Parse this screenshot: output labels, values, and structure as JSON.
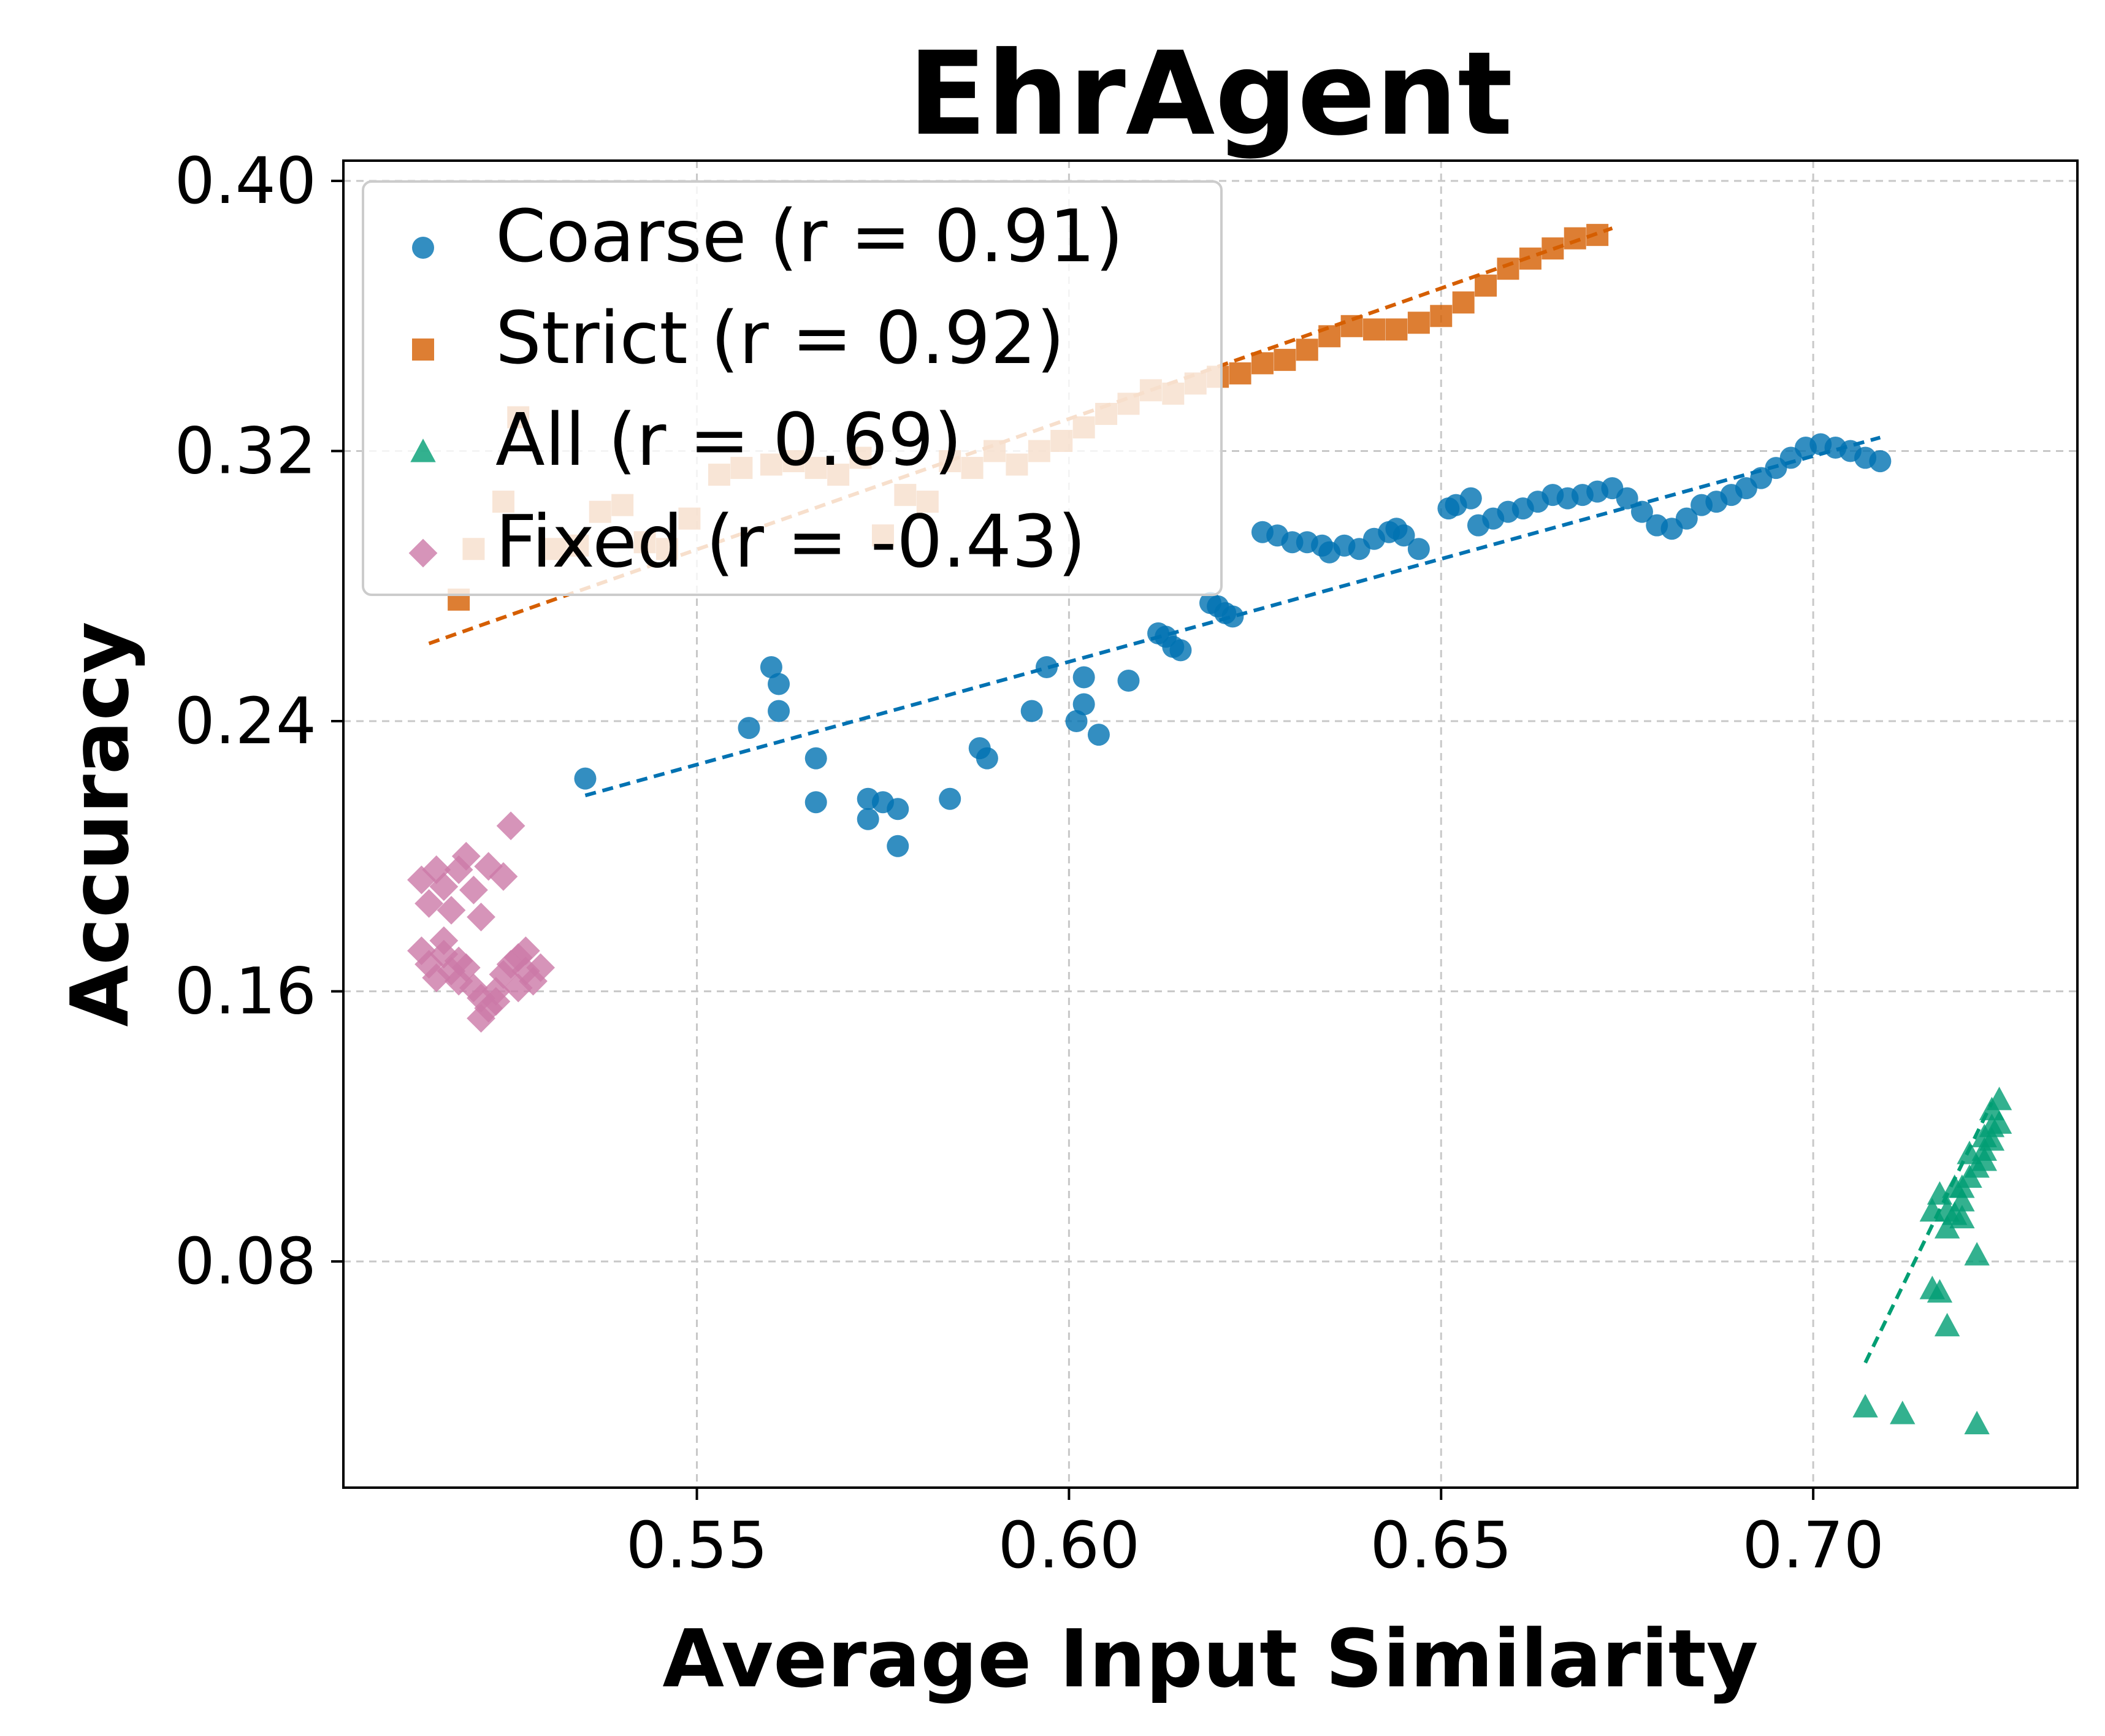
{
  "chart_data": {
    "type": "scatter",
    "title": "EhrAgent",
    "xlabel": "Average Input Similarity",
    "ylabel": "Accuracy",
    "xlim": [
      0.5025,
      0.7355
    ],
    "ylim": [
      0.013,
      0.406
    ],
    "xticks": [
      0.55,
      0.6,
      0.65,
      0.7
    ],
    "xtick_labels": [
      "0.55",
      "0.60",
      "0.65",
      "0.70"
    ],
    "yticks": [
      0.08,
      0.16,
      0.24,
      0.32,
      0.4
    ],
    "ytick_labels": [
      "0.08",
      "0.16",
      "0.24",
      "0.32",
      "0.40"
    ],
    "grid": true,
    "legend_position": "top-left",
    "series": [
      {
        "name": "Coarse (r = 0.91)",
        "color": "#0072b2",
        "marker": "circle",
        "trend": [
          [
            0.535,
            0.218
          ],
          [
            0.709,
            0.324
          ]
        ],
        "points": [
          [
            0.535,
            0.223
          ],
          [
            0.557,
            0.238
          ],
          [
            0.56,
            0.256
          ],
          [
            0.561,
            0.251
          ],
          [
            0.561,
            0.243
          ],
          [
            0.566,
            0.229
          ],
          [
            0.566,
            0.216
          ],
          [
            0.573,
            0.217
          ],
          [
            0.573,
            0.211
          ],
          [
            0.575,
            0.216
          ],
          [
            0.577,
            0.214
          ],
          [
            0.577,
            0.203
          ],
          [
            0.584,
            0.217
          ],
          [
            0.588,
            0.232
          ],
          [
            0.589,
            0.229
          ],
          [
            0.595,
            0.243
          ],
          [
            0.597,
            0.256
          ],
          [
            0.601,
            0.24
          ],
          [
            0.602,
            0.245
          ],
          [
            0.602,
            0.253
          ],
          [
            0.604,
            0.236
          ],
          [
            0.608,
            0.252
          ],
          [
            0.612,
            0.266
          ],
          [
            0.613,
            0.265
          ],
          [
            0.614,
            0.262
          ],
          [
            0.615,
            0.261
          ],
          [
            0.619,
            0.275
          ],
          [
            0.62,
            0.274
          ],
          [
            0.621,
            0.272
          ],
          [
            0.622,
            0.271
          ],
          [
            0.626,
            0.296
          ],
          [
            0.628,
            0.295
          ],
          [
            0.63,
            0.293
          ],
          [
            0.632,
            0.293
          ],
          [
            0.634,
            0.292
          ],
          [
            0.635,
            0.29
          ],
          [
            0.637,
            0.292
          ],
          [
            0.639,
            0.291
          ],
          [
            0.641,
            0.294
          ],
          [
            0.643,
            0.296
          ],
          [
            0.644,
            0.297
          ],
          [
            0.645,
            0.295
          ],
          [
            0.647,
            0.291
          ],
          [
            0.651,
            0.303
          ],
          [
            0.652,
            0.304
          ],
          [
            0.654,
            0.306
          ],
          [
            0.655,
            0.298
          ],
          [
            0.657,
            0.3
          ],
          [
            0.659,
            0.302
          ],
          [
            0.661,
            0.303
          ],
          [
            0.663,
            0.305
          ],
          [
            0.665,
            0.307
          ],
          [
            0.667,
            0.306
          ],
          [
            0.669,
            0.307
          ],
          [
            0.671,
            0.308
          ],
          [
            0.673,
            0.309
          ],
          [
            0.675,
            0.306
          ],
          [
            0.677,
            0.302
          ],
          [
            0.679,
            0.298
          ],
          [
            0.681,
            0.297
          ],
          [
            0.683,
            0.3
          ],
          [
            0.685,
            0.304
          ],
          [
            0.687,
            0.305
          ],
          [
            0.689,
            0.307
          ],
          [
            0.691,
            0.309
          ],
          [
            0.693,
            0.312
          ],
          [
            0.695,
            0.315
          ],
          [
            0.697,
            0.318
          ],
          [
            0.699,
            0.321
          ],
          [
            0.701,
            0.322
          ],
          [
            0.703,
            0.321
          ],
          [
            0.705,
            0.32
          ],
          [
            0.707,
            0.318
          ],
          [
            0.709,
            0.317
          ]
        ]
      },
      {
        "name": "Strict (r = 0.92)",
        "color": "#d55e00",
        "marker": "square",
        "trend": [
          [
            0.514,
            0.263
          ],
          [
            0.673,
            0.386
          ]
        ],
        "points": [
          [
            0.518,
            0.276
          ],
          [
            0.52,
            0.291
          ],
          [
            0.524,
            0.305
          ],
          [
            0.526,
            0.33
          ],
          [
            0.531,
            0.291
          ],
          [
            0.534,
            0.292
          ],
          [
            0.537,
            0.302
          ],
          [
            0.54,
            0.304
          ],
          [
            0.543,
            0.293
          ],
          [
            0.546,
            0.291
          ],
          [
            0.549,
            0.3
          ],
          [
            0.553,
            0.313
          ],
          [
            0.556,
            0.315
          ],
          [
            0.56,
            0.316
          ],
          [
            0.563,
            0.317
          ],
          [
            0.566,
            0.315
          ],
          [
            0.569,
            0.313
          ],
          [
            0.572,
            0.318
          ],
          [
            0.575,
            0.295
          ],
          [
            0.578,
            0.307
          ],
          [
            0.581,
            0.305
          ],
          [
            0.584,
            0.317
          ],
          [
            0.587,
            0.315
          ],
          [
            0.59,
            0.32
          ],
          [
            0.593,
            0.316
          ],
          [
            0.596,
            0.32
          ],
          [
            0.599,
            0.323
          ],
          [
            0.602,
            0.327
          ],
          [
            0.605,
            0.331
          ],
          [
            0.608,
            0.334
          ],
          [
            0.611,
            0.338
          ],
          [
            0.614,
            0.337
          ],
          [
            0.617,
            0.34
          ],
          [
            0.62,
            0.342
          ],
          [
            0.623,
            0.343
          ],
          [
            0.626,
            0.346
          ],
          [
            0.629,
            0.347
          ],
          [
            0.632,
            0.35
          ],
          [
            0.635,
            0.354
          ],
          [
            0.638,
            0.357
          ],
          [
            0.641,
            0.356
          ],
          [
            0.644,
            0.356
          ],
          [
            0.647,
            0.358
          ],
          [
            0.65,
            0.36
          ],
          [
            0.653,
            0.364
          ],
          [
            0.656,
            0.369
          ],
          [
            0.659,
            0.374
          ],
          [
            0.662,
            0.377
          ],
          [
            0.665,
            0.38
          ],
          [
            0.668,
            0.383
          ],
          [
            0.671,
            0.384
          ]
        ]
      },
      {
        "name": "All (r = 0.69)",
        "color": "#009e73",
        "marker": "triangle",
        "trend": [
          [
            0.707,
            0.05
          ],
          [
            0.724,
            0.127
          ]
        ],
        "points": [
          [
            0.707,
            0.037
          ],
          [
            0.712,
            0.035
          ],
          [
            0.716,
            0.095
          ],
          [
            0.716,
            0.072
          ],
          [
            0.717,
            0.1
          ],
          [
            0.717,
            0.071
          ],
          [
            0.718,
            0.095
          ],
          [
            0.718,
            0.061
          ],
          [
            0.719,
            0.102
          ],
          [
            0.719,
            0.094
          ],
          [
            0.72,
            0.102
          ],
          [
            0.72,
            0.093
          ],
          [
            0.721,
            0.112
          ],
          [
            0.722,
            0.108
          ],
          [
            0.722,
            0.082
          ],
          [
            0.722,
            0.032
          ],
          [
            0.723,
            0.117
          ],
          [
            0.723,
            0.113
          ],
          [
            0.724,
            0.125
          ],
          [
            0.724,
            0.12
          ],
          [
            0.725,
            0.128
          ],
          [
            0.725,
            0.121
          ],
          [
            0.724,
            0.116
          ],
          [
            0.723,
            0.11
          ],
          [
            0.721,
            0.105
          ],
          [
            0.72,
            0.098
          ],
          [
            0.718,
            0.09
          ]
        ]
      },
      {
        "name": "Fixed (r = -0.43)",
        "color": "#cc79a7",
        "marker": "diamond",
        "trend": null,
        "points": [
          [
            0.513,
            0.193
          ],
          [
            0.514,
            0.186
          ],
          [
            0.515,
            0.196
          ],
          [
            0.516,
            0.191
          ],
          [
            0.517,
            0.184
          ],
          [
            0.518,
            0.196
          ],
          [
            0.519,
            0.2
          ],
          [
            0.52,
            0.19
          ],
          [
            0.521,
            0.182
          ],
          [
            0.522,
            0.197
          ],
          [
            0.524,
            0.194
          ],
          [
            0.525,
            0.209
          ],
          [
            0.513,
            0.172
          ],
          [
            0.514,
            0.168
          ],
          [
            0.515,
            0.164
          ],
          [
            0.516,
            0.171
          ],
          [
            0.517,
            0.166
          ],
          [
            0.518,
            0.163
          ],
          [
            0.519,
            0.167
          ],
          [
            0.52,
            0.161
          ],
          [
            0.521,
            0.158
          ],
          [
            0.521,
            0.152
          ],
          [
            0.522,
            0.155
          ],
          [
            0.523,
            0.16
          ],
          [
            0.524,
            0.165
          ],
          [
            0.525,
            0.168
          ],
          [
            0.526,
            0.17
          ],
          [
            0.527,
            0.166
          ],
          [
            0.528,
            0.163
          ],
          [
            0.529,
            0.167
          ],
          [
            0.527,
            0.172
          ],
          [
            0.526,
            0.161
          ],
          [
            0.523,
            0.157
          ],
          [
            0.518,
            0.169
          ],
          [
            0.516,
            0.175
          ]
        ]
      }
    ]
  }
}
